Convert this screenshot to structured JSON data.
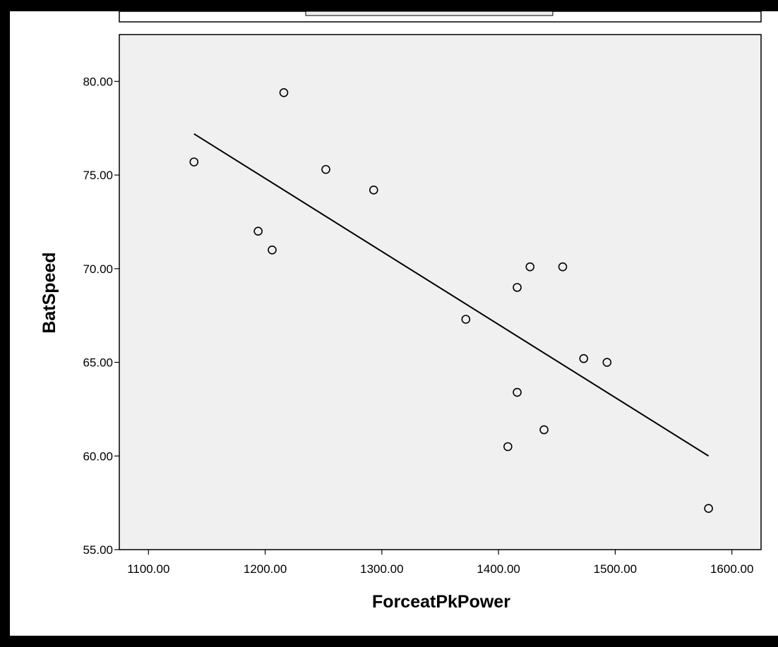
{
  "chart_data": {
    "type": "scatter",
    "xlabel": "ForceatPkPower",
    "ylabel": "BatSpeed",
    "xlim": [
      1075,
      1625
    ],
    "ylim": [
      55,
      82.5
    ],
    "x_ticks": [
      "1100.00",
      "1200.00",
      "1300.00",
      "1400.00",
      "1500.00",
      "1600.00"
    ],
    "y_ticks": [
      "55.00",
      "60.00",
      "65.00",
      "70.00",
      "75.00",
      "80.00"
    ],
    "points": [
      {
        "x": 1139,
        "y": 75.7
      },
      {
        "x": 1216,
        "y": 79.4
      },
      {
        "x": 1194,
        "y": 72.0
      },
      {
        "x": 1206,
        "y": 71.0
      },
      {
        "x": 1252,
        "y": 75.3
      },
      {
        "x": 1293,
        "y": 74.2
      },
      {
        "x": 1372,
        "y": 67.3
      },
      {
        "x": 1416,
        "y": 69.0
      },
      {
        "x": 1427,
        "y": 70.1
      },
      {
        "x": 1455,
        "y": 70.1
      },
      {
        "x": 1473,
        "y": 65.2
      },
      {
        "x": 1493,
        "y": 65.0
      },
      {
        "x": 1416,
        "y": 63.4
      },
      {
        "x": 1439,
        "y": 61.4
      },
      {
        "x": 1408,
        "y": 60.5
      },
      {
        "x": 1580,
        "y": 57.2
      }
    ],
    "fit_line": {
      "x": [
        1139,
        1580
      ],
      "y": [
        77.2,
        60.0
      ]
    },
    "grid": false,
    "colors": {
      "outer_frame": "#000000",
      "background": "#ffffff",
      "plot_area": "#f0f0f0",
      "marker_stroke": "#000000",
      "fit_line": "#000000",
      "text": "#000000"
    }
  }
}
